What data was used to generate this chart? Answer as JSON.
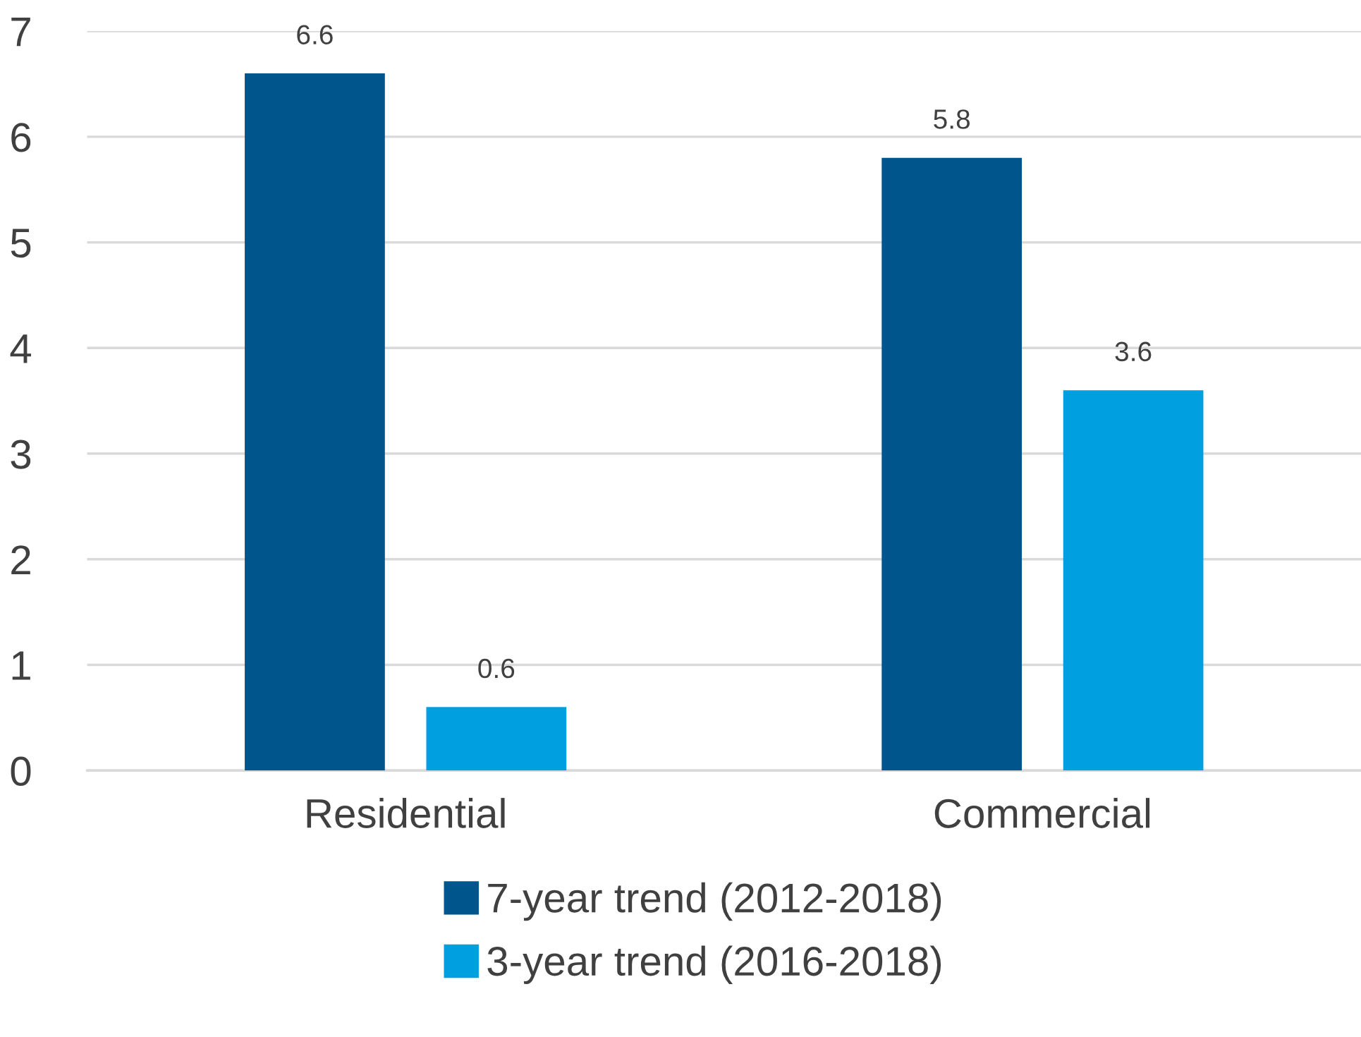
{
  "chart_data": {
    "type": "bar",
    "categories": [
      "Residential",
      "Commercial"
    ],
    "series": [
      {
        "name": "7-year trend (2012-2018)",
        "color": "#00558c",
        "values": [
          6.6,
          5.8
        ]
      },
      {
        "name": "3-year trend (2016-2018)",
        "color": "#009fe0",
        "values": [
          0.6,
          3.6
        ]
      }
    ],
    "ylim": [
      0,
      7
    ],
    "yticks": [
      0,
      1,
      2,
      3,
      4,
      5,
      6,
      7
    ],
    "grid": "y",
    "legend": "bottom",
    "data_labels": true
  }
}
